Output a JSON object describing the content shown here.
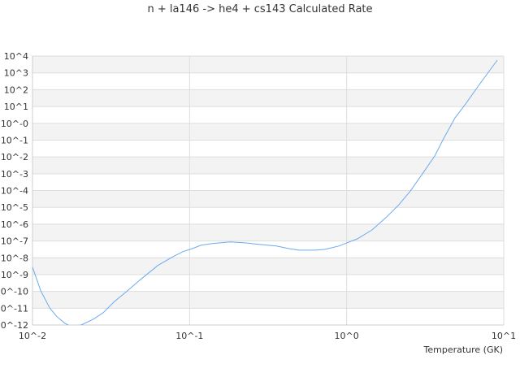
{
  "chart_data": {
    "type": "line",
    "title": "n + la146 -> he4 + cs143 Calculated Rate",
    "xlabel": "Temperature (GK)",
    "ylabel": "",
    "xscale": "log",
    "yscale": "log",
    "xlim": [
      0.01,
      10
    ],
    "ylim": [
      1e-12,
      10000.0
    ],
    "grid": true,
    "line_color": "#6aaaf0",
    "band_color": "#f3f3f3",
    "grid_color": "#dddddd",
    "x_ticks": [
      "10^-2",
      "10^-1",
      "10^0",
      "10^1"
    ],
    "y_ticks": [
      "10^4",
      "10^3",
      "10^2",
      "10^1",
      "10^-0",
      "10^-1",
      "10^-2",
      "10^-3",
      "10^-4",
      "10^-5",
      "10^-6",
      "10^-7",
      "10^-8",
      "10^-9",
      "10^-10",
      "10^-11",
      "10^-12"
    ],
    "series": [
      {
        "log10_x": [
          -2,
          -1.948,
          -1.891,
          -1.845,
          -1.793,
          -1.752,
          -1.69,
          -1.612,
          -1.55,
          -1.483,
          -1.395,
          -1.317,
          -1.203,
          -1.105,
          -1.043,
          -0.981,
          -0.929,
          -0.862,
          -0.743,
          -0.655,
          -0.551,
          -0.448,
          -0.37,
          -0.303,
          -0.2,
          -0.138,
          -0.05,
          0.069,
          0.162,
          0.25,
          0.328,
          0.406,
          0.483,
          0.561,
          0.613,
          0.69,
          0.757,
          0.845,
          0.913,
          0.959
        ],
        "log10_y": [
          -8.56,
          -9.96,
          -10.98,
          -11.5,
          -11.9,
          -12.1,
          -12.0,
          -11.65,
          -11.27,
          -10.64,
          -9.96,
          -9.33,
          -8.46,
          -7.93,
          -7.64,
          -7.45,
          -7.26,
          -7.16,
          -7.06,
          -7.11,
          -7.21,
          -7.3,
          -7.45,
          -7.55,
          -7.55,
          -7.5,
          -7.3,
          -6.87,
          -6.34,
          -5.61,
          -4.89,
          -4.02,
          -3.0,
          -1.94,
          -0.98,
          0.33,
          1.15,
          2.31,
          3.18,
          3.76
        ]
      }
    ]
  }
}
